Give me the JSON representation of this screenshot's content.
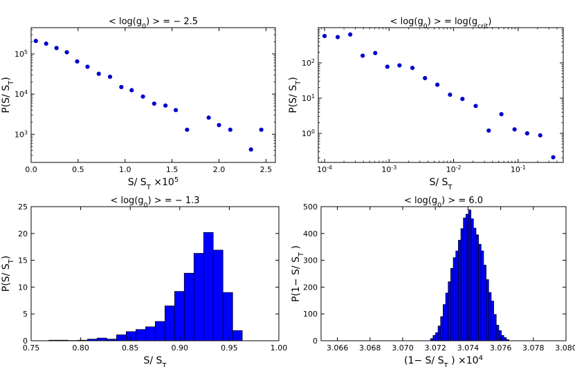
{
  "chart_data": [
    {
      "id": "tl",
      "type": "scatter",
      "title": "< log(g0) > = − 2.5",
      "title_parts": [
        "< log(g",
        "0",
        ") > = − 2.5"
      ],
      "xlabel": "S/ ST ×10^5",
      "xlabel_parts": [
        "S/ S",
        "T",
        " ×10",
        "5"
      ],
      "ylabel": "P(S/ ST)",
      "ylabel_parts": [
        "P(S/ S",
        "T",
        ")"
      ],
      "xscale": "linear",
      "yscale": "log",
      "xlim": [
        0,
        2.6
      ],
      "ylim": [
        200,
        450000
      ],
      "xticks": [
        0.0,
        0.5,
        1.0,
        1.5,
        2.0,
        2.5
      ],
      "xtick_labels": [
        "0.0",
        "0.5",
        "1.0",
        "1.5",
        "2.0",
        "2.5"
      ],
      "yticks": [
        1000,
        10000,
        100000
      ],
      "ytick_labels": [
        [
          "10",
          "3"
        ],
        [
          "10",
          "4"
        ],
        [
          "10",
          "5"
        ]
      ],
      "grid": false,
      "color": "#0000cc",
      "x": [
        0.05,
        0.16,
        0.27,
        0.38,
        0.49,
        0.6,
        0.72,
        0.84,
        0.96,
        1.07,
        1.19,
        1.31,
        1.43,
        1.54,
        1.66,
        1.89,
        2.0,
        2.12,
        2.34,
        2.45
      ],
      "y": [
        210000,
        180000,
        140000,
        110000,
        65000,
        48000,
        32000,
        27000,
        15000,
        12500,
        8700,
        5800,
        5200,
        4000,
        1300,
        2600,
        1700,
        1300,
        420,
        1300
      ]
    },
    {
      "id": "tr",
      "type": "scatter",
      "title": "< log(g0) > = log(gcrit)",
      "title_parts": [
        "< log(g",
        "0",
        ") > = log(g",
        "crit",
        ")"
      ],
      "xlabel": "S/ ST",
      "xlabel_parts": [
        "S/ S",
        "T"
      ],
      "ylabel": "P(S/ ST)",
      "ylabel_parts": [
        "P(S/ S",
        "T",
        ")"
      ],
      "xscale": "log",
      "yscale": "log",
      "xlim": [
        8e-05,
        0.5
      ],
      "ylim": [
        0.15,
        1000
      ],
      "xticks": [
        0.0001,
        0.001,
        0.01,
        0.1
      ],
      "xtick_labels": [
        [
          "10",
          "-4"
        ],
        [
          "10",
          "-3"
        ],
        [
          "10",
          "-2"
        ],
        [
          "10",
          "-1"
        ]
      ],
      "yticks": [
        1,
        10,
        100
      ],
      "ytick_labels": [
        [
          "10",
          "0"
        ],
        [
          "10",
          "1"
        ],
        [
          "10",
          "2"
        ]
      ],
      "grid": false,
      "color": "#0000cc",
      "x": [
        0.0001,
        0.00016,
        0.00025,
        0.00039,
        0.00061,
        0.00094,
        0.00145,
        0.0023,
        0.0036,
        0.0056,
        0.0088,
        0.0137,
        0.022,
        0.035,
        0.055,
        0.088,
        0.138,
        0.22,
        0.35
      ],
      "y": [
        580,
        540,
        640,
        160,
        190,
        78,
        85,
        72,
        37,
        24,
        12.5,
        9.5,
        6,
        1.2,
        3.5,
        1.3,
        1.0,
        0.88,
        0.21
      ]
    },
    {
      "id": "bl",
      "type": "bar",
      "title": "< log(g0) > = − 1.3",
      "title_parts": [
        "< log(g",
        "0",
        ") > = − 1.3"
      ],
      "xlabel": "S/ ST",
      "xlabel_parts": [
        "S/ S",
        "T"
      ],
      "ylabel": "P(S/ ST)",
      "ylabel_parts": [
        "P(S/ S",
        "T",
        ")"
      ],
      "xscale": "linear",
      "yscale": "linear",
      "xlim": [
        0.75,
        1.0
      ],
      "ylim": [
        0,
        25
      ],
      "xticks": [
        0.75,
        0.8,
        0.85,
        0.9,
        0.95,
        1.0
      ],
      "xtick_labels": [
        "0.75",
        "0.80",
        "0.85",
        "0.90",
        "0.95",
        "1.00"
      ],
      "yticks": [
        0,
        5,
        10,
        15,
        20,
        25
      ],
      "ytick_labels": [
        "0",
        "5",
        "10",
        "15",
        "20",
        "25"
      ],
      "grid": false,
      "color": "#0000ff",
      "bin_edges": [
        0.7678,
        0.7776,
        0.7873,
        0.7971,
        0.8069,
        0.8166,
        0.8264,
        0.8362,
        0.8459,
        0.8557,
        0.8655,
        0.8752,
        0.885,
        0.8948,
        0.9045,
        0.9143,
        0.9241,
        0.9338,
        0.9436,
        0.9534,
        0.9631
      ],
      "values": [
        0.1,
        0.1,
        0.05,
        0.1,
        0.3,
        0.5,
        0.3,
        1.1,
        1.7,
        2.1,
        2.6,
        3.6,
        6.5,
        9.2,
        12.6,
        16.3,
        20.2,
        16.9,
        9.0,
        1.9
      ]
    },
    {
      "id": "br",
      "type": "bar",
      "title": "< log(g0) > = 6.0",
      "title_parts": [
        "< log(g",
        "0",
        ") > = 6.0"
      ],
      "xlabel": "(1− S/ ST ) ×10^4",
      "xlabel_parts": [
        "(1− S/ S",
        "T",
        " ) ×10",
        "4"
      ],
      "ylabel": "P(1− S/ ST )",
      "ylabel_parts": [
        "P(1− S/ S",
        "T",
        " )"
      ],
      "xscale": "linear",
      "yscale": "linear",
      "xlim": [
        3.065,
        3.08
      ],
      "ylim": [
        0,
        500
      ],
      "xticks": [
        3.066,
        3.068,
        3.07,
        3.072,
        3.074,
        3.076,
        3.078,
        3.08
      ],
      "xtick_labels": [
        "3.066",
        "3.068",
        "3.070",
        "3.072",
        "3.074",
        "3.076",
        "3.078",
        "3.080"
      ],
      "yticks": [
        0,
        100,
        200,
        300,
        400,
        500
      ],
      "ytick_labels": [
        "0",
        "100",
        "200",
        "300",
        "400",
        "500"
      ],
      "grid": false,
      "color": "#0000ff",
      "bin_start": 3.0717,
      "bin_width": 0.000155,
      "values": [
        8,
        20,
        30,
        55,
        90,
        135,
        178,
        220,
        270,
        310,
        335,
        375,
        418,
        458,
        472,
        488,
        455,
        420,
        395,
        360,
        335,
        282,
        228,
        180,
        148,
        98,
        58,
        38,
        20,
        12,
        4
      ]
    }
  ]
}
